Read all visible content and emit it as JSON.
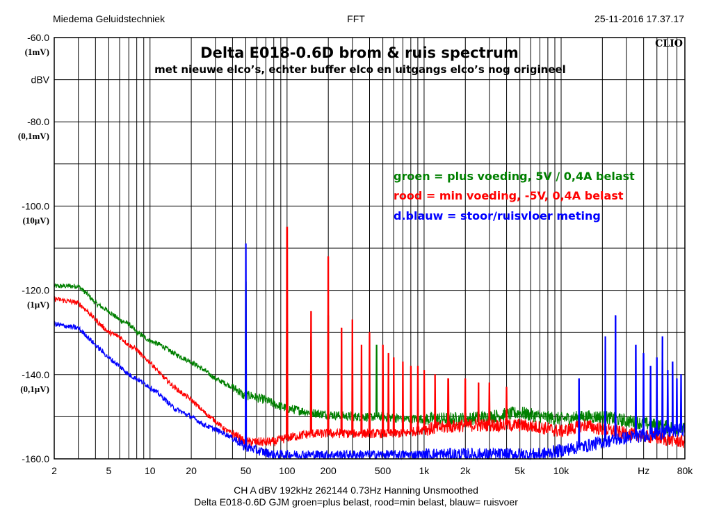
{
  "header": {
    "left": "Miedema Geluidstechniek",
    "center": "FFT",
    "right": "25-11-2016 17.37.17"
  },
  "brand": "CLIO",
  "footer": {
    "line1": "CH A   dBV   192kHz   262144   0.73Hz   Hanning   Unsmoothed",
    "line2": "Delta E018-0.6D GJM groen=plus belast,   rood=min belast,     blauw= ruisvoer"
  },
  "colors": {
    "green": "#008000",
    "red": "#ff0000",
    "blue": "#0000ff",
    "grid": "#000000"
  },
  "chart_data": {
    "type": "line",
    "title": "Delta E018-0.6D brom & ruis spectrum",
    "subtitle": "met nieuwe elco’s, echter buffer elco en uitgangs elco’s nog origineel",
    "xscale": "log",
    "xlim": [
      2,
      80000
    ],
    "ylim": [
      -160,
      -60
    ],
    "grid": true,
    "xunit": "Hz",
    "ylabel": "dBV",
    "xticks": [
      {
        "v": 2,
        "label": "2"
      },
      {
        "v": 5,
        "label": "5"
      },
      {
        "v": 10,
        "label": "10"
      },
      {
        "v": 20,
        "label": "20"
      },
      {
        "v": 50,
        "label": "50"
      },
      {
        "v": 100,
        "label": "100"
      },
      {
        "v": 200,
        "label": "200"
      },
      {
        "v": 500,
        "label": "500"
      },
      {
        "v": 1000,
        "label": "1k"
      },
      {
        "v": 2000,
        "label": "2k"
      },
      {
        "v": 5000,
        "label": "5k"
      },
      {
        "v": 10000,
        "label": "10k"
      },
      {
        "v": 80000,
        "label": "80k"
      }
    ],
    "xunit_at": 40000,
    "yticks": [
      {
        "v": -60,
        "label": "-60.0",
        "sub": "(1mV)"
      },
      {
        "v": -80,
        "label": "-80.0",
        "sub": "(0,1mV)"
      },
      {
        "v": -100,
        "label": "-100.0",
        "sub": "(10µV)"
      },
      {
        "v": -120,
        "label": "-120.0",
        "sub": "(1µV)"
      },
      {
        "v": -140,
        "label": "-140.0",
        "sub": "(0,1µV)"
      },
      {
        "v": -160,
        "label": "-160.0",
        "sub": ""
      }
    ],
    "ylabel_at": -70,
    "legend": [
      {
        "text": "groen = plus voeding, 5V / 0,4A belast",
        "color": "#008000"
      },
      {
        "text": "rood   = min voeding, -5V, 0,4A belast",
        "color": "#ff0000"
      },
      {
        "text": "d.blauw = stoor/ruisvloer meting",
        "color": "#0000ff"
      }
    ],
    "series": [
      {
        "name": "groen",
        "color": "#008000",
        "x": [
          2,
          3,
          3.5,
          4,
          5,
          6,
          7,
          8,
          9,
          10,
          12,
          15,
          20,
          25,
          30,
          35,
          40,
          45,
          48,
          55,
          60,
          70,
          80,
          100,
          150,
          200,
          300,
          500,
          700,
          1000,
          2000,
          3000,
          5000,
          7000,
          10000,
          15000,
          20000,
          30000,
          50000,
          80000
        ],
        "y": [
          -119,
          -119,
          -121,
          -123,
          -125,
          -127,
          -128,
          -130,
          -131,
          -132,
          -133,
          -135,
          -137,
          -139,
          -141,
          -142,
          -143,
          -144,
          -145,
          -145,
          -145.5,
          -146,
          -147,
          -148,
          -149,
          -149.5,
          -150,
          -150,
          -150.5,
          -150.5,
          -150.5,
          -150,
          -149,
          -150,
          -150.5,
          -150,
          -150,
          -151,
          -152,
          -153
        ]
      },
      {
        "name": "rood",
        "color": "#ff0000",
        "x": [
          2,
          3,
          3.5,
          4,
          5,
          6,
          7,
          8,
          9,
          10,
          12,
          15,
          20,
          25,
          30,
          35,
          40,
          45,
          48,
          55,
          60,
          70,
          80,
          100,
          150,
          200,
          300,
          500,
          700,
          1000,
          2000,
          3000,
          5000,
          7000,
          10000,
          15000,
          20000,
          30000,
          50000,
          80000
        ],
        "y": [
          -122,
          -123,
          -125,
          -127,
          -130,
          -131,
          -133,
          -134,
          -136,
          -137,
          -140,
          -143,
          -146,
          -149,
          -151,
          -153,
          -154,
          -155,
          -156,
          -156,
          -156,
          -156,
          -156,
          -155,
          -154,
          -154,
          -154,
          -154,
          -154,
          -153,
          -152,
          -152,
          -152,
          -152.5,
          -153.5,
          -152,
          -153,
          -154,
          -155,
          -156
        ]
      },
      {
        "name": "blauw",
        "color": "#0000ff",
        "x": [
          2,
          3,
          3.5,
          4,
          5,
          6,
          7,
          8,
          9,
          10,
          12,
          15,
          20,
          25,
          30,
          35,
          40,
          45,
          48,
          55,
          60,
          70,
          80,
          100,
          150,
          200,
          300,
          500,
          700,
          1000,
          2000,
          3000,
          5000,
          7000,
          10000,
          15000,
          20000,
          30000,
          50000,
          80000
        ],
        "y": [
          -128,
          -129,
          -131,
          -133,
          -136,
          -138,
          -140,
          -141,
          -142,
          -143,
          -145,
          -148,
          -150,
          -152,
          -153,
          -154,
          -155,
          -156,
          -157,
          -157.5,
          -158,
          -158.5,
          -159,
          -159,
          -159,
          -159,
          -159,
          -159,
          -159,
          -159,
          -159,
          -159,
          -159,
          -159,
          -158,
          -157,
          -156,
          -155,
          -154,
          -153
        ]
      }
    ],
    "peaks": [
      {
        "series": "blauw",
        "x": 50,
        "y": -109
      },
      {
        "series": "groen",
        "x": 50,
        "y": -118
      },
      {
        "series": "rood",
        "x": 100,
        "y": -105
      },
      {
        "series": "groen",
        "x": 100,
        "y": -128
      },
      {
        "series": "rood",
        "x": 150,
        "y": -125
      },
      {
        "series": "groen",
        "x": 150,
        "y": -131
      },
      {
        "series": "rood",
        "x": 200,
        "y": -112
      },
      {
        "series": "groen",
        "x": 200,
        "y": -126
      },
      {
        "series": "rood",
        "x": 250,
        "y": -129
      },
      {
        "series": "rood",
        "x": 300,
        "y": -127
      },
      {
        "series": "rood",
        "x": 350,
        "y": -133
      },
      {
        "series": "rood",
        "x": 400,
        "y": -130
      },
      {
        "series": "groen",
        "x": 450,
        "y": -133
      },
      {
        "series": "rood",
        "x": 500,
        "y": -133
      },
      {
        "series": "rood",
        "x": 550,
        "y": -135
      },
      {
        "series": "rood",
        "x": 600,
        "y": -136
      },
      {
        "series": "rood",
        "x": 700,
        "y": -137
      },
      {
        "series": "rood",
        "x": 800,
        "y": -138
      },
      {
        "series": "rood",
        "x": 900,
        "y": -138
      },
      {
        "series": "rood",
        "x": 1000,
        "y": -139
      },
      {
        "series": "rood",
        "x": 1200,
        "y": -140
      },
      {
        "series": "rood",
        "x": 1500,
        "y": -141
      },
      {
        "series": "rood",
        "x": 2000,
        "y": -141
      },
      {
        "series": "rood",
        "x": 2500,
        "y": -142
      },
      {
        "series": "rood",
        "x": 3000,
        "y": -142
      },
      {
        "series": "rood",
        "x": 4000,
        "y": -143
      },
      {
        "series": "blauw",
        "x": 13500,
        "y": -141
      },
      {
        "series": "blauw",
        "x": 21000,
        "y": -131
      },
      {
        "series": "blauw",
        "x": 25000,
        "y": -126
      },
      {
        "series": "blauw",
        "x": 35000,
        "y": -133
      },
      {
        "series": "blauw",
        "x": 40000,
        "y": -135
      },
      {
        "series": "blauw",
        "x": 45000,
        "y": -138
      },
      {
        "series": "blauw",
        "x": 50000,
        "y": -136
      },
      {
        "series": "blauw",
        "x": 55000,
        "y": -131
      },
      {
        "series": "blauw",
        "x": 60000,
        "y": -139
      },
      {
        "series": "blauw",
        "x": 65000,
        "y": -137
      },
      {
        "series": "blauw",
        "x": 70000,
        "y": -141
      },
      {
        "series": "blauw",
        "x": 75000,
        "y": -140
      }
    ]
  }
}
